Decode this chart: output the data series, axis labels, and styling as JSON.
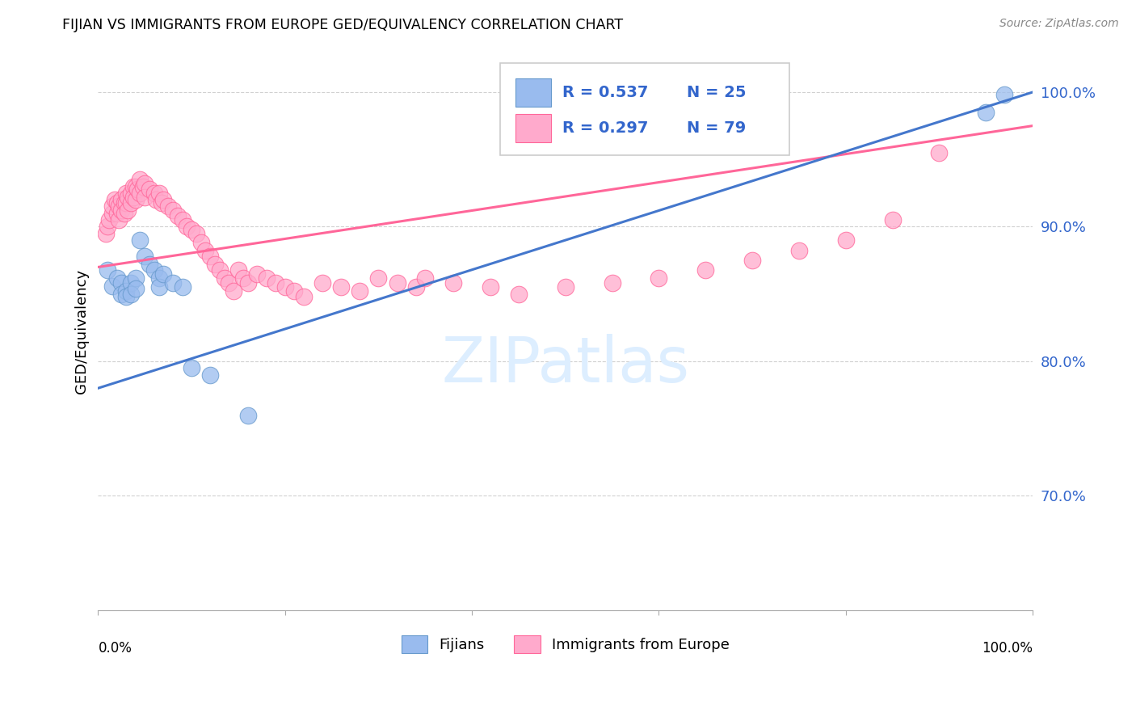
{
  "title": "FIJIAN VS IMMIGRANTS FROM EUROPE GED/EQUIVALENCY CORRELATION CHART",
  "source": "Source: ZipAtlas.com",
  "ylabel": "GED/Equivalency",
  "yticks": [
    "70.0%",
    "80.0%",
    "90.0%",
    "100.0%"
  ],
  "ytick_vals": [
    0.7,
    0.8,
    0.9,
    1.0
  ],
  "xlim": [
    0.0,
    1.0
  ],
  "ylim": [
    0.615,
    1.03
  ],
  "fijian_color": "#99BBEE",
  "fijian_edge": "#6699CC",
  "europe_color": "#FFAACC",
  "europe_edge": "#FF6699",
  "line_fijian_color": "#4477CC",
  "line_europe_color": "#FF6699",
  "legend_r_color": "#3366CC",
  "watermark_color": "#DDEEFF",
  "fijian_x": [
    0.01,
    0.015,
    0.02,
    0.025,
    0.025,
    0.03,
    0.03,
    0.035,
    0.035,
    0.04,
    0.04,
    0.045,
    0.05,
    0.055,
    0.06,
    0.065,
    0.065,
    0.07,
    0.08,
    0.09,
    0.1,
    0.12,
    0.16,
    0.95,
    0.97
  ],
  "fijian_y": [
    0.868,
    0.856,
    0.862,
    0.858,
    0.85,
    0.852,
    0.848,
    0.858,
    0.85,
    0.862,
    0.854,
    0.89,
    0.878,
    0.872,
    0.868,
    0.862,
    0.855,
    0.865,
    0.858,
    0.855,
    0.795,
    0.79,
    0.76,
    0.985,
    0.998
  ],
  "europe_x": [
    0.008,
    0.01,
    0.012,
    0.015,
    0.015,
    0.018,
    0.02,
    0.02,
    0.022,
    0.022,
    0.025,
    0.025,
    0.028,
    0.028,
    0.03,
    0.03,
    0.032,
    0.032,
    0.035,
    0.035,
    0.038,
    0.038,
    0.04,
    0.04,
    0.042,
    0.045,
    0.045,
    0.048,
    0.05,
    0.05,
    0.055,
    0.06,
    0.062,
    0.065,
    0.068,
    0.07,
    0.075,
    0.08,
    0.085,
    0.09,
    0.095,
    0.1,
    0.105,
    0.11,
    0.115,
    0.12,
    0.125,
    0.13,
    0.135,
    0.14,
    0.145,
    0.15,
    0.155,
    0.16,
    0.17,
    0.18,
    0.19,
    0.2,
    0.21,
    0.22,
    0.24,
    0.26,
    0.28,
    0.3,
    0.32,
    0.34,
    0.35,
    0.38,
    0.42,
    0.45,
    0.5,
    0.55,
    0.6,
    0.65,
    0.7,
    0.75,
    0.8,
    0.85,
    0.9
  ],
  "europe_y": [
    0.895,
    0.9,
    0.905,
    0.91,
    0.915,
    0.92,
    0.918,
    0.91,
    0.915,
    0.905,
    0.92,
    0.912,
    0.918,
    0.91,
    0.925,
    0.918,
    0.922,
    0.912,
    0.925,
    0.918,
    0.93,
    0.922,
    0.93,
    0.92,
    0.928,
    0.935,
    0.925,
    0.93,
    0.932,
    0.922,
    0.928,
    0.925,
    0.92,
    0.925,
    0.918,
    0.92,
    0.915,
    0.912,
    0.908,
    0.905,
    0.9,
    0.898,
    0.895,
    0.888,
    0.882,
    0.878,
    0.872,
    0.868,
    0.862,
    0.858,
    0.852,
    0.868,
    0.862,
    0.858,
    0.865,
    0.862,
    0.858,
    0.855,
    0.852,
    0.848,
    0.858,
    0.855,
    0.852,
    0.862,
    0.858,
    0.855,
    0.862,
    0.858,
    0.855,
    0.85,
    0.855,
    0.858,
    0.862,
    0.868,
    0.875,
    0.882,
    0.89,
    0.905,
    0.955
  ],
  "fijian_line_x0": 0.0,
  "fijian_line_y0": 0.78,
  "fijian_line_x1": 1.0,
  "fijian_line_y1": 1.0,
  "europe_line_x0": 0.0,
  "europe_line_y0": 0.87,
  "europe_line_x1": 1.0,
  "europe_line_y1": 0.975
}
